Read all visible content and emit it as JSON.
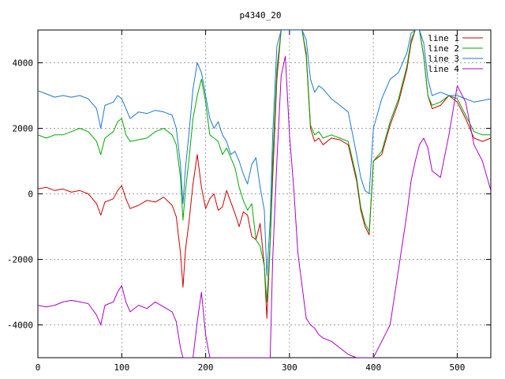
{
  "chart_data": {
    "type": "line",
    "title": "p4340_20",
    "xlabel": "",
    "ylabel": "",
    "xlim": [
      0,
      540
    ],
    "ylim": [
      -5000,
      5000
    ],
    "x_ticks": [
      0,
      100,
      200,
      300,
      400,
      500
    ],
    "y_ticks": [
      -4000,
      -2000,
      0,
      2000,
      4000
    ],
    "x_tick_labels": [
      "0",
      "100",
      "200",
      "300",
      "400",
      "500"
    ],
    "y_tick_labels": [
      "-4000",
      "-2000",
      "0",
      "2000",
      "4000"
    ],
    "grid": true,
    "legend_position": "top-right",
    "series": [
      {
        "name": "line 1",
        "color": "#cc0000",
        "x": [
          0,
          10,
          20,
          30,
          40,
          50,
          60,
          70,
          75,
          80,
          90,
          95,
          100,
          105,
          110,
          120,
          130,
          140,
          150,
          160,
          165,
          170,
          173,
          176,
          180,
          185,
          190,
          195,
          200,
          205,
          210,
          215,
          220,
          225,
          230,
          235,
          240,
          245,
          250,
          255,
          260,
          265,
          270,
          273,
          277,
          280,
          285,
          290,
          295,
          300,
          305,
          310,
          315,
          320,
          325,
          330,
          335,
          340,
          350,
          360,
          370,
          380,
          385,
          390,
          395,
          400,
          410,
          420,
          430,
          440,
          445,
          450,
          455,
          460,
          465,
          470,
          480,
          490,
          500,
          510,
          520,
          530,
          540
        ],
        "y": [
          150,
          200,
          100,
          150,
          50,
          100,
          0,
          -300,
          -650,
          -250,
          -150,
          100,
          250,
          -150,
          -450,
          -350,
          -200,
          -250,
          -100,
          -350,
          -700,
          -1800,
          -2850,
          -1700,
          -900,
          300,
          1200,
          200,
          -450,
          -150,
          0,
          -500,
          -400,
          100,
          -250,
          -600,
          -1000,
          -550,
          -650,
          -1300,
          -1400,
          -900,
          -2200,
          -3800,
          -1500,
          500,
          3500,
          5000,
          5000,
          5000,
          5000,
          5000,
          5000,
          4200,
          2000,
          1600,
          1700,
          1500,
          1700,
          1650,
          1500,
          400,
          -500,
          -1000,
          -1250,
          1000,
          1200,
          2100,
          2800,
          3800,
          4600,
          5000,
          5000,
          4200,
          3000,
          2600,
          2700,
          3000,
          2800,
          2300,
          1700,
          1600,
          1700
        ]
      },
      {
        "name": "line 2",
        "color": "#00aa00",
        "x": [
          0,
          10,
          20,
          30,
          40,
          50,
          60,
          70,
          75,
          80,
          90,
          95,
          100,
          105,
          110,
          120,
          130,
          140,
          150,
          160,
          165,
          170,
          173,
          176,
          180,
          185,
          190,
          195,
          200,
          205,
          210,
          215,
          220,
          225,
          230,
          235,
          240,
          245,
          250,
          255,
          260,
          265,
          270,
          273,
          277,
          280,
          285,
          290,
          295,
          300,
          305,
          310,
          315,
          320,
          325,
          330,
          335,
          340,
          350,
          360,
          370,
          380,
          385,
          390,
          395,
          400,
          410,
          420,
          430,
          440,
          445,
          450,
          455,
          460,
          465,
          470,
          480,
          490,
          500,
          510,
          520,
          530,
          540
        ],
        "y": [
          1800,
          1700,
          1800,
          1800,
          1900,
          2000,
          1900,
          1600,
          1200,
          1700,
          1900,
          2200,
          2300,
          1800,
          1600,
          1650,
          1700,
          1900,
          2000,
          1800,
          1500,
          500,
          -800,
          100,
          1000,
          2300,
          3000,
          3500,
          2800,
          1800,
          1700,
          1600,
          1200,
          1400,
          1100,
          800,
          200,
          -200,
          -500,
          -300,
          -1400,
          -1600,
          -2200,
          -3300,
          -1500,
          1000,
          3800,
          5000,
          5000,
          5000,
          5000,
          5000,
          5000,
          4300,
          2100,
          1800,
          1900,
          1700,
          1800,
          1700,
          1600,
          500,
          -400,
          -900,
          -1150,
          1000,
          1300,
          2200,
          2900,
          3900,
          4700,
          5000,
          5000,
          4200,
          3000,
          2700,
          2800,
          3000,
          2900,
          2400,
          1900,
          1800,
          1800
        ]
      },
      {
        "name": "line 3",
        "color": "#1e78d2",
        "x": [
          0,
          10,
          20,
          30,
          40,
          50,
          60,
          70,
          75,
          80,
          90,
          95,
          100,
          105,
          110,
          120,
          130,
          140,
          150,
          160,
          165,
          170,
          173,
          176,
          180,
          185,
          190,
          195,
          200,
          205,
          210,
          215,
          220,
          225,
          230,
          235,
          240,
          245,
          250,
          255,
          260,
          265,
          270,
          273,
          277,
          280,
          285,
          290,
          295,
          300,
          305,
          310,
          315,
          320,
          325,
          330,
          335,
          340,
          350,
          360,
          370,
          380,
          385,
          390,
          395,
          400,
          410,
          420,
          430,
          440,
          445,
          450,
          455,
          460,
          465,
          470,
          480,
          490,
          500,
          510,
          520,
          530,
          540
        ],
        "y": [
          3150,
          3050,
          2950,
          3000,
          2950,
          3000,
          2900,
          2600,
          2000,
          2700,
          2800,
          3000,
          2900,
          2600,
          2300,
          2500,
          2450,
          2550,
          2500,
          2400,
          2000,
          900,
          -300,
          800,
          1800,
          3200,
          4000,
          3700,
          3000,
          2300,
          2000,
          2200,
          1800,
          1600,
          1200,
          1300,
          1000,
          600,
          300,
          900,
          1100,
          200,
          -500,
          -2500,
          -800,
          1800,
          4500,
          5000,
          5000,
          5000,
          5000,
          5000,
          5000,
          4700,
          3500,
          3100,
          3300,
          3200,
          2900,
          2700,
          2500,
          1200,
          500,
          100,
          0,
          2000,
          2900,
          3500,
          3700,
          4300,
          4900,
          5000,
          5000,
          4600,
          3500,
          3000,
          3100,
          3000,
          3000,
          2900,
          2800,
          2850,
          2900
        ]
      },
      {
        "name": "line 4",
        "color": "#aa00cc",
        "x": [
          0,
          10,
          20,
          30,
          40,
          50,
          60,
          70,
          75,
          80,
          90,
          95,
          100,
          105,
          110,
          120,
          130,
          140,
          150,
          160,
          165,
          170,
          173,
          176,
          180,
          185,
          190,
          195,
          200,
          205,
          210,
          215,
          220,
          225,
          230,
          235,
          240,
          245,
          250,
          255,
          260,
          265,
          270,
          273,
          277,
          280,
          285,
          290,
          295,
          300,
          305,
          310,
          315,
          320,
          325,
          330,
          335,
          340,
          350,
          360,
          370,
          380,
          385,
          390,
          395,
          400,
          410,
          420,
          430,
          440,
          445,
          450,
          455,
          460,
          465,
          470,
          480,
          490,
          500,
          510,
          520,
          530,
          540
        ],
        "y": [
          -3400,
          -3450,
          -3400,
          -3300,
          -3250,
          -3300,
          -3350,
          -3700,
          -4000,
          -3400,
          -3300,
          -3000,
          -2800,
          -3300,
          -3600,
          -3400,
          -3500,
          -3300,
          -3450,
          -3600,
          -3900,
          -4700,
          -5000,
          -5000,
          -5000,
          -5000,
          -3900,
          -3000,
          -4300,
          -5000,
          -5000,
          -5000,
          -5000,
          -5000,
          -5000,
          -5000,
          -5000,
          -5000,
          -5000,
          -5000,
          -5000,
          -5000,
          -5000,
          -5000,
          -5000,
          -2000,
          1000,
          3600,
          4200,
          1800,
          200,
          -1800,
          -2800,
          -3800,
          -4000,
          -4100,
          -4300,
          -4400,
          -4500,
          -4700,
          -4900,
          -5000,
          -5000,
          -5000,
          -5000,
          -5000,
          -4500,
          -4000,
          -2300,
          -600,
          400,
          1000,
          1500,
          1700,
          1400,
          700,
          500,
          1800,
          3300,
          2800,
          1500,
          1000,
          100
        ]
      }
    ]
  }
}
